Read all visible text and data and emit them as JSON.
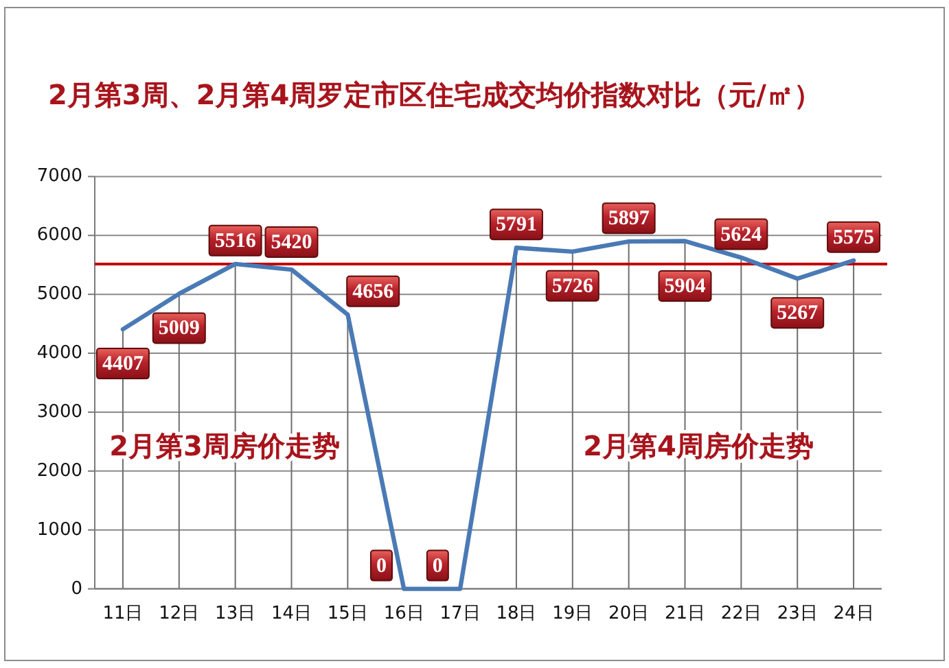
{
  "chart_data": {
    "type": "line",
    "title": "2月第3周、2月第4周罗定市区住宅成交均价指数对比（元/㎡）",
    "categories": [
      "11日",
      "12日",
      "13日",
      "14日",
      "15日",
      "16日",
      "17日",
      "18日",
      "19日",
      "20日",
      "21日",
      "22日",
      "23日",
      "24日"
    ],
    "series": [
      {
        "color": "#4a7ab5",
        "values": [
          4407,
          5009,
          5516,
          5420,
          4656,
          0,
          0,
          5791,
          5726,
          5897,
          5904,
          5624,
          5267,
          5575
        ]
      }
    ],
    "data_labels": true,
    "ylim": [
      0,
      7000
    ],
    "yticks": [
      0,
      1000,
      2000,
      3000,
      4000,
      5000,
      6000,
      7000
    ],
    "grid": true,
    "ref_lines": [
      {
        "axis": "y",
        "value": 5515,
        "color": "#c00000"
      }
    ],
    "annotations": [
      "2月第3周房价走势",
      "2月第4周房价走势"
    ]
  }
}
